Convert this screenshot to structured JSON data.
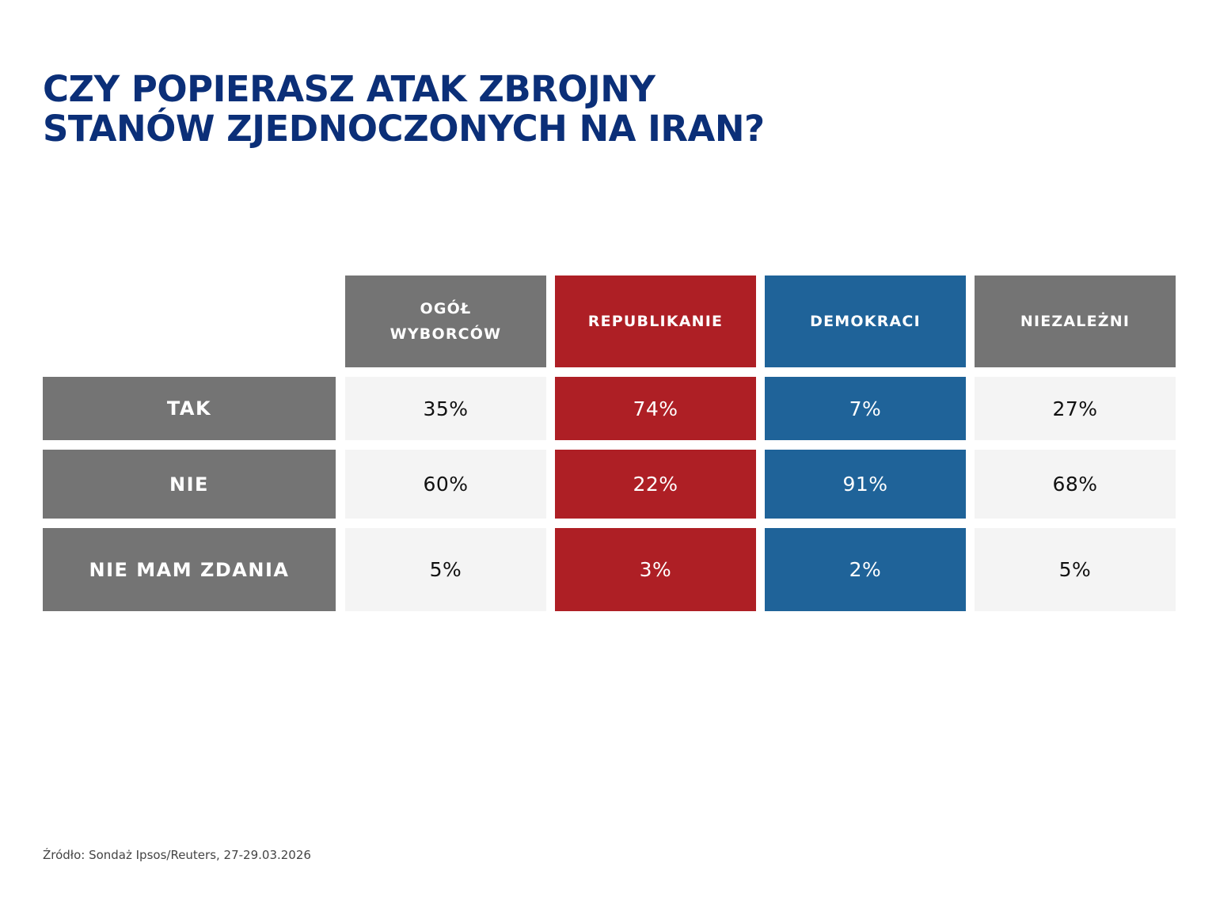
{
  "title": {
    "line1": "CZY POPIERASZ ATAK ZBROJNY",
    "line2": "STANÓW ZJEDNOCZONYCH NA IRAN?"
  },
  "colors": {
    "title": "#0b2f78",
    "grey": "#747474",
    "republican": "#ae1f25",
    "democrat": "#1f6399",
    "cell_neutral": "#f4f4f4"
  },
  "chart_data": {
    "type": "table",
    "title": "CZY POPIERASZ ATAK ZBROJNY STANÓW ZJEDNOCZONYCH NA IRAN?",
    "columns": [
      {
        "name": "OGÓŁ WYBORCÓW",
        "line1": "OGÓŁ",
        "line2": "WYBORCÓW",
        "color": "#747474",
        "style": "neutral"
      },
      {
        "name": "REPUBLIKANIE",
        "line1": "REPUBLIKANIE",
        "line2": "",
        "color": "#ae1f25",
        "style": "light"
      },
      {
        "name": "DEMOKRACI",
        "line1": "DEMOKRACI",
        "line2": "",
        "color": "#1f6399",
        "style": "light"
      },
      {
        "name": "NIEZALEŻNI",
        "line1": "NIEZALEŻNI",
        "line2": "",
        "color": "#747474",
        "style": "neutral"
      }
    ],
    "rows": [
      {
        "label": "TAK",
        "values": [
          "35%",
          "74%",
          "7%",
          "27%"
        ]
      },
      {
        "label": "NIE",
        "values": [
          "60%",
          "22%",
          "91%",
          "68%"
        ]
      },
      {
        "label": "NIE MAM ZDANIA",
        "values": [
          "5%",
          "3%",
          "2%",
          "5%"
        ]
      }
    ]
  },
  "source": "Źródło: Sondaż Ipsos/Reuters, 27-29.03.2026"
}
